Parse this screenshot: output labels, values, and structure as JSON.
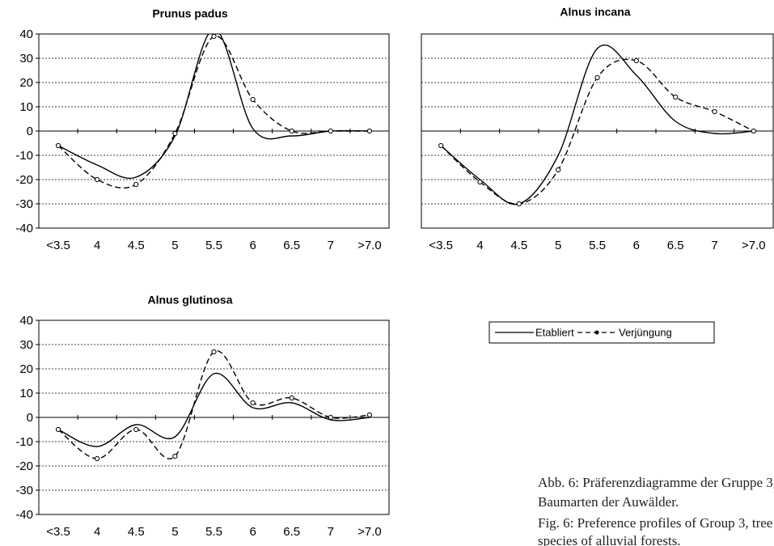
{
  "chart_data": [
    {
      "type": "line",
      "title": "Prunus padus",
      "categories": [
        "<3.5",
        "4",
        "4.5",
        "5",
        "5.5",
        "6",
        "6.5",
        "7",
        ">7.0"
      ],
      "series": [
        {
          "name": "Etabliert",
          "color": "#000000",
          "line_style": "solid",
          "values": [
            -6,
            -14,
            -19,
            -2,
            42,
            1,
            -2,
            0,
            0
          ]
        },
        {
          "name": "Verjüngung",
          "color": "#000000",
          "line_style": "dashed",
          "marker": "circle",
          "values": [
            -6,
            -20,
            -22,
            -1,
            39,
            13,
            0,
            0,
            0
          ]
        }
      ],
      "ylim": [
        -40,
        40
      ],
      "yticks": [
        -40,
        -30,
        -20,
        -10,
        0,
        10,
        20,
        30,
        40
      ],
      "grid": true,
      "show_ytick_labels": true
    },
    {
      "type": "line",
      "title": "Alnus incana",
      "categories": [
        "<3.5",
        "4",
        "4.5",
        "5",
        "5.5",
        "6",
        "6.5",
        "7",
        ">7.0"
      ],
      "series": [
        {
          "name": "Etabliert",
          "color": "#000000",
          "line_style": "solid",
          "values": [
            -6,
            -20,
            -30,
            -10,
            34,
            23,
            4,
            -1,
            0
          ]
        },
        {
          "name": "Verjüngung",
          "color": "#000000",
          "line_style": "dashed",
          "marker": "circle",
          "values": [
            -6,
            -21,
            -30,
            -16,
            22,
            29,
            14,
            8,
            0
          ]
        }
      ],
      "ylim": [
        -40,
        40
      ],
      "yticks": [
        -40,
        -30,
        -20,
        -10,
        0,
        10,
        20,
        30,
        40
      ],
      "grid": true,
      "show_ytick_labels": false
    },
    {
      "type": "line",
      "title": "Alnus glutinosa",
      "categories": [
        "<3.5",
        "4",
        "4.5",
        "5",
        "5.5",
        "6",
        "6.5",
        "7",
        ">7.0"
      ],
      "series": [
        {
          "name": "Etabliert",
          "color": "#000000",
          "line_style": "solid",
          "values": [
            -5,
            -12,
            -3,
            -8,
            18,
            4,
            6,
            -1,
            0
          ]
        },
        {
          "name": "Verjüngung",
          "color": "#000000",
          "line_style": "dashed",
          "marker": "circle",
          "values": [
            -5,
            -17,
            -5,
            -16,
            27,
            6,
            8,
            0,
            1
          ]
        }
      ],
      "ylim": [
        -40,
        40
      ],
      "yticks": [
        -40,
        -30,
        -20,
        -10,
        0,
        10,
        20,
        30,
        40
      ],
      "grid": true,
      "show_ytick_labels": true
    }
  ],
  "caption": {
    "de": [
      "Abb. 6: Präferenzdiagramme der Gruppe 3,",
      "Baumarten der Auwälder."
    ],
    "en": [
      "Fig. 6: Preference profiles of Group 3, tree",
      "species of alluvial forests."
    ]
  }
}
